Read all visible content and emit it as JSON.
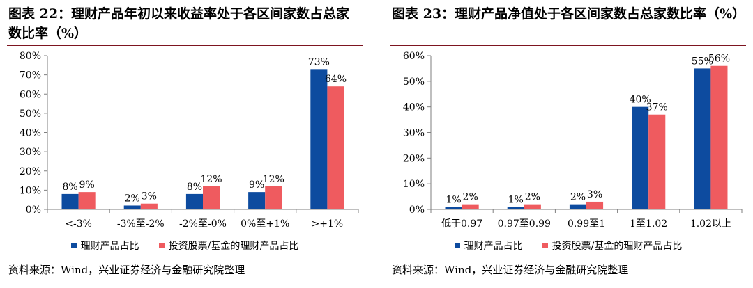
{
  "colors": {
    "series_a": "#0d4b9f",
    "series_b": "#ef5b5f",
    "axis": "#7f7f7f",
    "rule": "#7d1520"
  },
  "panels": [
    {
      "title": "图表 22：理财产品年初以来收益率处于各区间家数占总家数比率（%）",
      "source": "资料来源：Wind，兴业证券经济与金融研究院整理"
    },
    {
      "title": "图表 23：理财产品净值处于各区间家数占总家数比率（%）",
      "source": "资料来源：Wind，兴业证券经济与金融研究院整理"
    }
  ],
  "chart_data": [
    {
      "type": "bar",
      "categories": [
        "<-3%",
        "-3%至-2%",
        "-2%至-0%",
        "0%至+1%",
        ">+1%"
      ],
      "series": [
        {
          "name": "理财产品占比",
          "values": [
            8,
            2,
            8,
            9,
            73
          ],
          "labels": [
            "8%",
            "2%",
            "8%",
            "9%",
            "73%"
          ]
        },
        {
          "name": "投资股票/基金的理财产品占比",
          "values": [
            9,
            3,
            12,
            12,
            64
          ],
          "labels": [
            "9%",
            "3%",
            "12%",
            "12%",
            "64%"
          ]
        }
      ],
      "ylim": [
        0,
        80
      ],
      "yticks": [
        0,
        10,
        20,
        30,
        40,
        50,
        60,
        70,
        80
      ],
      "ytick_labels": [
        "0%",
        "10%",
        "20%",
        "30%",
        "40%",
        "50%",
        "60%",
        "70%",
        "80%"
      ],
      "legend_position": "bottom",
      "grid": false
    },
    {
      "type": "bar",
      "categories": [
        "低于0.97",
        "0.97至0.99",
        "0.99至1",
        "1至1.02",
        "1.02以上"
      ],
      "series": [
        {
          "name": "理财产品占比",
          "values": [
            1,
            1,
            2,
            40,
            55
          ],
          "labels": [
            "1%",
            "1%",
            "2%",
            "40%",
            "55%"
          ]
        },
        {
          "name": "投资股票/基金的理财产品占比",
          "values": [
            2,
            2,
            3,
            37,
            56
          ],
          "labels": [
            "2%",
            "2%",
            "3%",
            "37%",
            "56%"
          ]
        }
      ],
      "ylim": [
        0,
        60
      ],
      "yticks": [
        0,
        10,
        20,
        30,
        40,
        50,
        60
      ],
      "ytick_labels": [
        "0%",
        "10%",
        "20%",
        "30%",
        "40%",
        "50%",
        "60%"
      ],
      "legend_position": "bottom",
      "grid": false
    }
  ]
}
